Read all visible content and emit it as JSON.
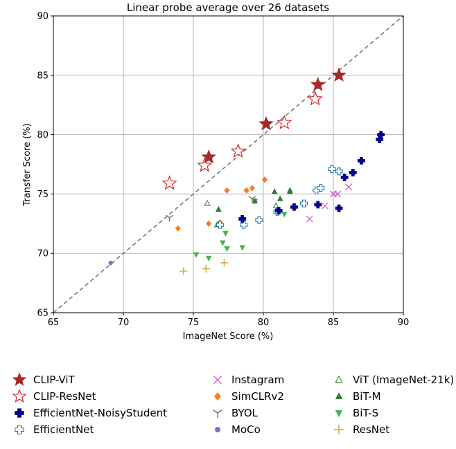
{
  "chart_data": {
    "type": "scatter",
    "title": "Linear probe average over 26 datasets",
    "xlabel": "ImageNet Score (%)",
    "ylabel": "Transfer Score (%)",
    "xlim": [
      65,
      90
    ],
    "ylim": [
      65,
      90
    ],
    "xticks": [
      "65",
      "70",
      "75",
      "80",
      "85",
      "90"
    ],
    "yticks": [
      "65",
      "70",
      "75",
      "80",
      "85",
      "90"
    ],
    "grid": true,
    "legend_position": "below",
    "reference_line": "y = x (dashed, gray)",
    "series": [
      {
        "name": "CLIP-ViT",
        "marker": "star-filled",
        "color": "#a52a2a",
        "points": [
          [
            76.1,
            78.1
          ],
          [
            80.2,
            80.9
          ],
          [
            83.9,
            84.2
          ],
          [
            85.4,
            85.0
          ]
        ]
      },
      {
        "name": "CLIP-ResNet",
        "marker": "star-open",
        "color": "#d62728",
        "points": [
          [
            73.3,
            75.9
          ],
          [
            75.8,
            77.4
          ],
          [
            78.2,
            78.6
          ],
          [
            81.5,
            81.0
          ],
          [
            83.7,
            83.0
          ]
        ]
      },
      {
        "name": "EfficientNet-NoisyStudent",
        "marker": "plus-filled",
        "color": "#00008b",
        "points": [
          [
            78.5,
            72.9
          ],
          [
            81.1,
            73.6
          ],
          [
            82.2,
            73.9
          ],
          [
            83.9,
            74.1
          ],
          [
            85.4,
            73.8
          ],
          [
            85.8,
            76.4
          ],
          [
            86.4,
            76.8
          ],
          [
            87.0,
            77.8
          ],
          [
            88.3,
            79.6
          ],
          [
            88.4,
            80.0
          ]
        ]
      },
      {
        "name": "EfficientNet",
        "marker": "plus-open",
        "color": "#1f77b4",
        "points": [
          [
            76.9,
            72.4
          ],
          [
            78.6,
            72.4
          ],
          [
            79.7,
            72.8
          ],
          [
            81.0,
            73.5
          ],
          [
            82.9,
            74.2
          ],
          [
            83.8,
            75.3
          ],
          [
            84.1,
            75.5
          ],
          [
            84.9,
            77.1
          ],
          [
            85.4,
            76.9
          ]
        ]
      },
      {
        "name": "Instagram",
        "marker": "x",
        "color": "#cc66cc",
        "points": [
          [
            83.3,
            72.9
          ],
          [
            84.4,
            74.0
          ],
          [
            85.0,
            75.0
          ],
          [
            85.3,
            75.0
          ],
          [
            86.1,
            75.6
          ]
        ]
      },
      {
        "name": "SimCLRv2",
        "marker": "diamond",
        "color": "#f28032",
        "points": [
          [
            73.9,
            72.1
          ],
          [
            76.1,
            72.5
          ],
          [
            76.9,
            72.6
          ],
          [
            77.4,
            75.3
          ],
          [
            78.8,
            75.3
          ],
          [
            79.2,
            75.5
          ],
          [
            80.1,
            76.2
          ]
        ]
      },
      {
        "name": "BYOL",
        "marker": "tri-down",
        "color": "#707070",
        "points": [
          [
            73.3,
            73.0
          ],
          [
            79.2,
            74.6
          ]
        ]
      },
      {
        "name": "MoCo",
        "marker": "circle",
        "color": "#8c6bbf",
        "points": [
          [
            69.1,
            69.2
          ]
        ]
      },
      {
        "name": "ViT (ImageNet-21k)",
        "marker": "triangle-up-open",
        "color": "#2e7d32",
        "points": [
          [
            76.0,
            74.2
          ],
          [
            76.7,
            72.4
          ],
          [
            80.9,
            74.0
          ]
        ]
      },
      {
        "name": "BiT-M",
        "marker": "triangle-up-filled",
        "color": "#2e7d32",
        "points": [
          [
            76.8,
            73.7
          ],
          [
            79.4,
            74.4
          ],
          [
            80.8,
            75.2
          ],
          [
            81.2,
            74.6
          ],
          [
            81.9,
            75.3
          ],
          [
            81.9,
            75.2
          ]
        ]
      },
      {
        "name": "BiT-S",
        "marker": "triangle-down-filled",
        "color": "#4caf50",
        "points": [
          [
            75.2,
            69.9
          ],
          [
            76.1,
            69.6
          ],
          [
            77.1,
            70.9
          ],
          [
            77.3,
            71.7
          ],
          [
            77.4,
            70.4
          ],
          [
            78.5,
            70.5
          ],
          [
            79.4,
            74.4
          ],
          [
            81.0,
            73.7
          ],
          [
            81.5,
            73.3
          ]
        ]
      },
      {
        "name": "ResNet",
        "marker": "plus-thin",
        "color": "#c8a82c",
        "points": [
          [
            74.3,
            68.5
          ],
          [
            75.9,
            68.7
          ],
          [
            77.2,
            69.2
          ]
        ]
      }
    ]
  }
}
